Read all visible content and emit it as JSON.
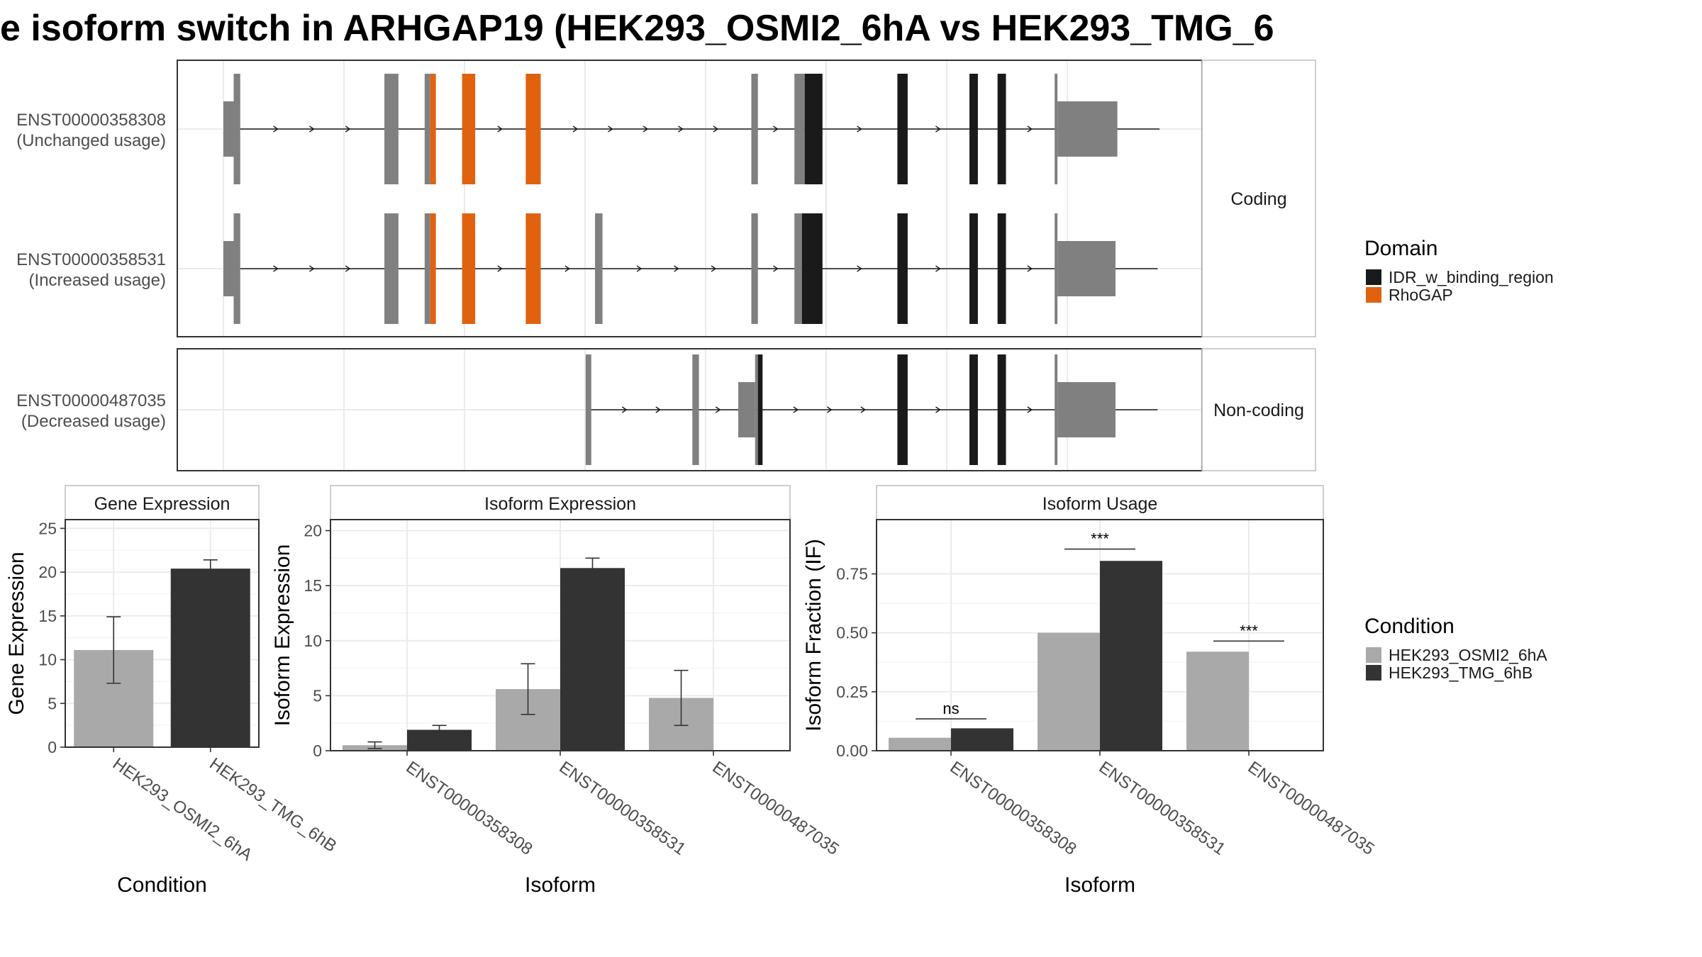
{
  "title": "e isoform switch in ARHGAP19 (HEK293_OSMI2_6hA vs HEK293_TMG_6",
  "colors": {
    "utr": "#808080",
    "idr": "#1a1a1a",
    "rhogap": "#e0620f",
    "cond_a": "#a9a9a9",
    "cond_b": "#333333"
  },
  "transcripts": {
    "strip_coding": "Coding",
    "strip_noncoding": "Non-coding",
    "rows": [
      {
        "id": "ENST00000358308",
        "usage": "(Unchanged usage)",
        "group": "coding",
        "span": [
          0.0,
          1.0
        ],
        "exons": [
          {
            "s": 0.0,
            "e": 0.011,
            "h": "utr"
          },
          {
            "s": 0.011,
            "e": 0.018,
            "h": "cds",
            "d": null
          },
          {
            "s": 0.172,
            "e": 0.187,
            "h": "cds",
            "d": null
          },
          {
            "s": 0.215,
            "e": 0.221,
            "h": "cds",
            "d": null
          },
          {
            "s": 0.221,
            "e": 0.227,
            "h": "cds",
            "d": "rhogap"
          },
          {
            "s": 0.255,
            "e": 0.269,
            "h": "cds",
            "d": "rhogap"
          },
          {
            "s": 0.323,
            "e": 0.339,
            "h": "cds",
            "d": "rhogap"
          },
          {
            "s": 0.564,
            "e": 0.571,
            "h": "cds",
            "d": null
          },
          {
            "s": 0.61,
            "e": 0.621,
            "h": "cds",
            "d": null
          },
          {
            "s": 0.621,
            "e": 0.64,
            "h": "cds",
            "d": "idr"
          },
          {
            "s": 0.72,
            "e": 0.731,
            "h": "cds",
            "d": "idr"
          },
          {
            "s": 0.797,
            "e": 0.806,
            "h": "cds",
            "d": "idr"
          },
          {
            "s": 0.827,
            "e": 0.836,
            "h": "cds",
            "d": "idr"
          },
          {
            "s": 0.888,
            "e": 0.891,
            "h": "cds",
            "d": null
          },
          {
            "s": 0.891,
            "e": 0.955,
            "h": "utr"
          }
        ]
      },
      {
        "id": "ENST00000358531",
        "usage": "(Increased usage)",
        "group": "coding",
        "span": [
          0.0,
          0.998
        ],
        "exons": [
          {
            "s": 0.0,
            "e": 0.011,
            "h": "utr"
          },
          {
            "s": 0.011,
            "e": 0.018,
            "h": "cds",
            "d": null
          },
          {
            "s": 0.172,
            "e": 0.187,
            "h": "cds",
            "d": null
          },
          {
            "s": 0.215,
            "e": 0.221,
            "h": "cds",
            "d": null
          },
          {
            "s": 0.221,
            "e": 0.227,
            "h": "cds",
            "d": "rhogap"
          },
          {
            "s": 0.255,
            "e": 0.269,
            "h": "cds",
            "d": "rhogap"
          },
          {
            "s": 0.323,
            "e": 0.339,
            "h": "cds",
            "d": "rhogap"
          },
          {
            "s": 0.397,
            "e": 0.405,
            "h": "cds",
            "d": null
          },
          {
            "s": 0.564,
            "e": 0.571,
            "h": "cds",
            "d": null
          },
          {
            "s": 0.61,
            "e": 0.618,
            "h": "cds",
            "d": null
          },
          {
            "s": 0.618,
            "e": 0.64,
            "h": "cds",
            "d": "idr"
          },
          {
            "s": 0.72,
            "e": 0.731,
            "h": "cds",
            "d": "idr"
          },
          {
            "s": 0.797,
            "e": 0.806,
            "h": "cds",
            "d": "idr"
          },
          {
            "s": 0.827,
            "e": 0.836,
            "h": "cds",
            "d": "idr"
          },
          {
            "s": 0.888,
            "e": 0.891,
            "h": "cds",
            "d": null
          },
          {
            "s": 0.891,
            "e": 0.953,
            "h": "utr"
          }
        ]
      },
      {
        "id": "ENST00000487035",
        "usage": "(Decreased usage)",
        "group": "noncoding",
        "span": [
          0.387,
          0.998
        ],
        "exons": [
          {
            "s": 0.387,
            "e": 0.393,
            "h": "cds",
            "d": null
          },
          {
            "s": 0.501,
            "e": 0.508,
            "h": "cds",
            "d": null
          },
          {
            "s": 0.55,
            "e": 0.568,
            "h": "utr"
          },
          {
            "s": 0.568,
            "e": 0.571,
            "h": "cds",
            "d": null
          },
          {
            "s": 0.571,
            "e": 0.576,
            "h": "cds",
            "d": "idr"
          },
          {
            "s": 0.72,
            "e": 0.731,
            "h": "cds",
            "d": "idr"
          },
          {
            "s": 0.797,
            "e": 0.806,
            "h": "cds",
            "d": "idr"
          },
          {
            "s": 0.827,
            "e": 0.836,
            "h": "cds",
            "d": "idr"
          },
          {
            "s": 0.888,
            "e": 0.891,
            "h": "cds",
            "d": null
          },
          {
            "s": 0.891,
            "e": 0.953,
            "h": "utr"
          }
        ]
      }
    ]
  },
  "legend_domain": {
    "title": "Domain",
    "items": [
      {
        "label": "IDR_w_binding_region",
        "color": "#1a1a1a"
      },
      {
        "label": "RhoGAP",
        "color": "#e0620f"
      }
    ]
  },
  "legend_condition": {
    "title": "Condition",
    "items": [
      {
        "label": "HEK293_OSMI2_6hA",
        "color": "#a9a9a9"
      },
      {
        "label": "HEK293_TMG_6hB",
        "color": "#333333"
      }
    ]
  },
  "chart_data": [
    {
      "type": "bar",
      "title": "Gene Expression",
      "xlabel": "Condition",
      "ylabel": "Gene Expression",
      "ylim": [
        0,
        26
      ],
      "yticks": [
        0,
        5,
        10,
        15,
        20,
        25
      ],
      "categories": [
        "HEK293_OSMI2_6hA",
        "HEK293_TMG_6hB"
      ],
      "series": [
        {
          "values": [
            11.1,
            20.4
          ],
          "err_low": [
            7.3,
            19.4
          ],
          "err_high": [
            14.9,
            21.4
          ]
        }
      ],
      "colors": [
        "#a9a9a9",
        "#333333"
      ]
    },
    {
      "type": "bar",
      "title": "Isoform Expression",
      "xlabel": "Isoform",
      "ylabel": "Isoform Expression",
      "ylim": [
        0,
        21
      ],
      "yticks": [
        0,
        5,
        10,
        15,
        20
      ],
      "categories": [
        "ENST00000358308",
        "ENST00000358531",
        "ENST00000487035"
      ],
      "series": [
        {
          "name": "HEK293_OSMI2_6hA",
          "values": [
            0.5,
            5.6,
            4.8
          ],
          "err_low": [
            0.2,
            3.3,
            2.3
          ],
          "err_high": [
            0.8,
            7.9,
            7.3
          ]
        },
        {
          "name": "HEK293_TMG_6hB",
          "values": [
            1.9,
            16.6,
            0.0
          ],
          "err_low": [
            1.5,
            15.6,
            0.0
          ],
          "err_high": [
            2.3,
            17.5,
            0.0
          ]
        }
      ]
    },
    {
      "type": "bar",
      "title": "Isoform Usage",
      "xlabel": "Isoform",
      "ylabel": "Isoform Fraction (IF)",
      "ylim": [
        0,
        0.98
      ],
      "yticks": [
        "0.00",
        "0.25",
        "0.50",
        "0.75"
      ],
      "categories": [
        "ENST00000358308",
        "ENST00000358531",
        "ENST00000487035"
      ],
      "series": [
        {
          "name": "HEK293_OSMI2_6hA",
          "values": [
            0.055,
            0.5,
            0.42
          ]
        },
        {
          "name": "HEK293_TMG_6hB",
          "values": [
            0.095,
            0.805,
            0.0
          ]
        }
      ],
      "significance": [
        "ns",
        "***",
        "***"
      ],
      "sig_y": [
        0.135,
        0.855,
        0.465
      ]
    }
  ]
}
